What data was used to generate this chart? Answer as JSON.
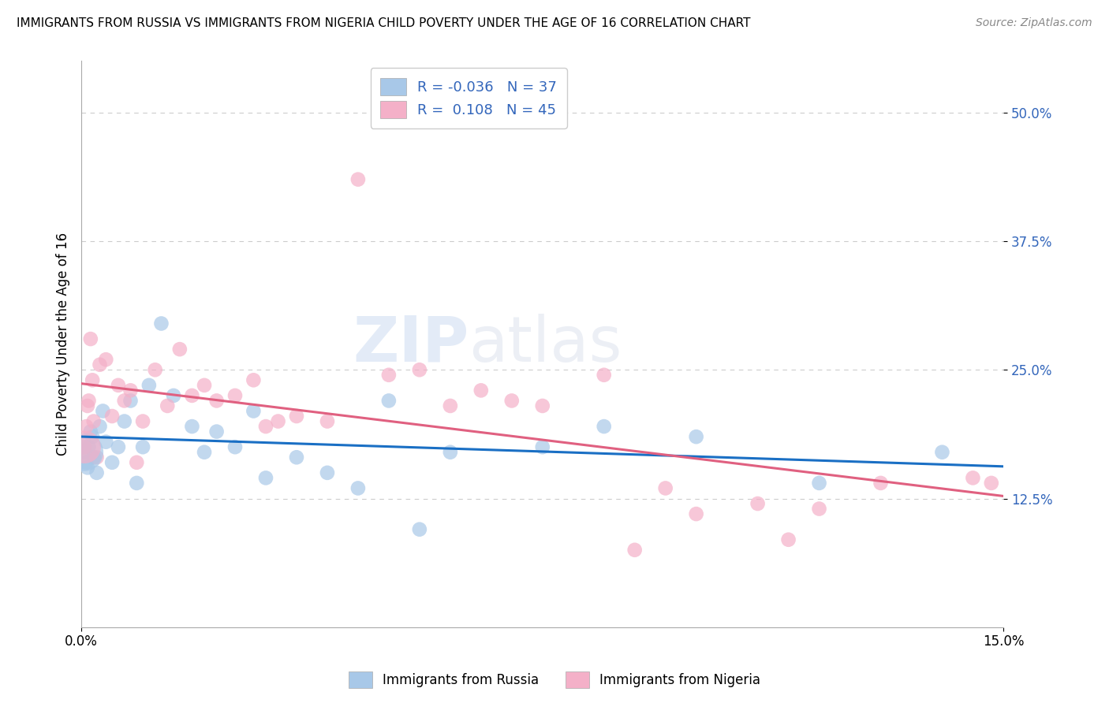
{
  "title": "IMMIGRANTS FROM RUSSIA VS IMMIGRANTS FROM NIGERIA CHILD POVERTY UNDER THE AGE OF 16 CORRELATION CHART",
  "source": "Source: ZipAtlas.com",
  "ylabel": "Child Poverty Under the Age of 16",
  "xlim": [
    0.0,
    15.0
  ],
  "ylim": [
    0.0,
    55.0
  ],
  "ytick_values": [
    12.5,
    25.0,
    37.5,
    50.0
  ],
  "russia_R": -0.036,
  "russia_N": 37,
  "nigeria_R": 0.108,
  "nigeria_N": 45,
  "russia_color": "#a8c8e8",
  "nigeria_color": "#f4b0c8",
  "russia_line_color": "#1a6fc4",
  "nigeria_line_color": "#e06080",
  "russia_x": [
    0.05,
    0.08,
    0.1,
    0.12,
    0.15,
    0.18,
    0.2,
    0.25,
    0.3,
    0.35,
    0.4,
    0.5,
    0.6,
    0.7,
    0.8,
    0.9,
    1.0,
    1.1,
    1.3,
    1.5,
    1.8,
    2.0,
    2.2,
    2.5,
    2.8,
    3.0,
    3.5,
    4.0,
    4.5,
    5.0,
    5.5,
    6.0,
    7.5,
    8.5,
    10.0,
    12.0,
    14.0
  ],
  "russia_y": [
    17.0,
    16.0,
    15.5,
    17.5,
    19.0,
    18.5,
    16.5,
    15.0,
    19.5,
    21.0,
    18.0,
    16.0,
    17.5,
    20.0,
    22.0,
    14.0,
    17.5,
    23.5,
    29.5,
    22.5,
    19.5,
    17.0,
    19.0,
    17.5,
    21.0,
    14.5,
    16.5,
    15.0,
    13.5,
    22.0,
    9.5,
    17.0,
    17.5,
    19.5,
    18.5,
    14.0,
    17.0
  ],
  "russia_sizes": [
    80,
    80,
    80,
    80,
    80,
    80,
    80,
    80,
    80,
    80,
    80,
    80,
    80,
    80,
    80,
    80,
    80,
    80,
    80,
    80,
    80,
    80,
    80,
    80,
    80,
    80,
    80,
    80,
    80,
    80,
    80,
    80,
    80,
    80,
    80,
    80,
    80
  ],
  "russia_big_x": 0.05,
  "russia_big_y": 17.0,
  "nigeria_x": [
    0.05,
    0.08,
    0.1,
    0.12,
    0.15,
    0.18,
    0.2,
    0.25,
    0.3,
    0.4,
    0.5,
    0.6,
    0.7,
    0.8,
    0.9,
    1.0,
    1.2,
    1.4,
    1.6,
    1.8,
    2.0,
    2.2,
    2.5,
    2.8,
    3.0,
    3.2,
    3.5,
    4.0,
    4.5,
    5.0,
    5.5,
    6.0,
    6.5,
    7.0,
    7.5,
    8.5,
    9.0,
    9.5,
    10.0,
    11.0,
    11.5,
    12.0,
    13.0,
    14.5,
    14.8
  ],
  "nigeria_y": [
    17.5,
    19.5,
    21.5,
    22.0,
    28.0,
    24.0,
    20.0,
    16.5,
    25.5,
    26.0,
    20.5,
    23.5,
    22.0,
    23.0,
    16.0,
    20.0,
    25.0,
    21.5,
    27.0,
    22.5,
    23.5,
    22.0,
    22.5,
    24.0,
    19.5,
    20.0,
    20.5,
    20.0,
    43.5,
    24.5,
    25.0,
    21.5,
    23.0,
    22.0,
    21.5,
    24.5,
    7.5,
    13.5,
    11.0,
    12.0,
    8.5,
    11.5,
    14.0,
    14.5,
    14.0
  ],
  "nigeria_big_x": 0.05,
  "nigeria_big_y": 17.5
}
